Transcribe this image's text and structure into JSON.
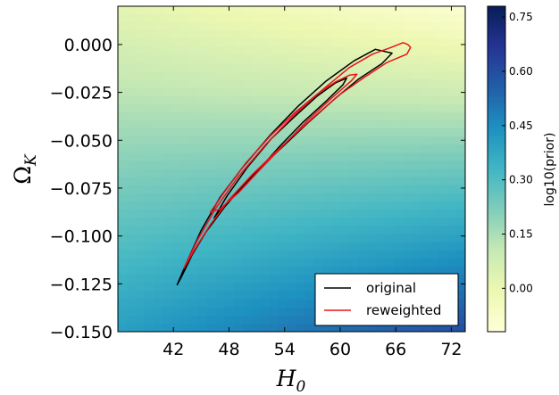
{
  "chart_data": {
    "type": "heatmap",
    "title": "",
    "xlabel_base": "H",
    "xlabel_sub": "0",
    "ylabel_base": "Ω",
    "ylabel_sub": "K",
    "xlim": [
      36,
      73.5
    ],
    "ylim": [
      -0.15,
      0.02
    ],
    "xticks": [
      42,
      48,
      54,
      60,
      66,
      72
    ],
    "xtick_labels": [
      "42",
      "48",
      "54",
      "60",
      "66",
      "72"
    ],
    "yticks": [
      0.0,
      -0.025,
      -0.05,
      -0.075,
      -0.1,
      -0.125,
      -0.15
    ],
    "ytick_labels": [
      "0.000",
      "−0.025",
      "−0.050",
      "−0.075",
      "−0.100",
      "−0.125",
      "−0.150"
    ],
    "colorbar": {
      "label": "log10(prior)",
      "range": [
        -0.12,
        0.78
      ],
      "ticks": [
        0.0,
        0.15,
        0.3,
        0.45,
        0.6,
        0.75
      ],
      "tick_labels": [
        "0.00",
        "0.15",
        "0.30",
        "0.45",
        "0.60",
        "0.75"
      ],
      "colormap": [
        "#ffffd9",
        "#edf8b1",
        "#c7e9b4",
        "#7fcdbb",
        "#41b6c4",
        "#1d91c0",
        "#225ea8",
        "#253494",
        "#081d58"
      ]
    },
    "heatmap": {
      "value_at_top_left": 0.02,
      "value_at_top_right": -0.1,
      "value_at_bottom_left": 0.4,
      "value_at_bottom_right": 0.6
    },
    "legend": {
      "placement": "lower-right",
      "entries": [
        {
          "label": "original",
          "color": "#000000"
        },
        {
          "label": "reweighted",
          "color": "#e8141c"
        }
      ]
    },
    "series": [
      {
        "name": "original",
        "color": "#000000",
        "contours": [
          {
            "level": "outer",
            "points": [
              [
                42.4,
                -0.1255
              ],
              [
                43.5,
                -0.113
              ],
              [
                45,
                -0.097
              ],
              [
                47,
                -0.08
              ],
              [
                49.5,
                -0.064
              ],
              [
                52.5,
                -0.047
              ],
              [
                55.5,
                -0.032
              ],
              [
                58.5,
                -0.019
              ],
              [
                61.5,
                -0.0085
              ],
              [
                63.8,
                -0.0025
              ],
              [
                65.6,
                -0.0045
              ],
              [
                64.5,
                -0.01
              ],
              [
                62,
                -0.018
              ],
              [
                59.5,
                -0.028
              ],
              [
                56.5,
                -0.041
              ],
              [
                53,
                -0.057
              ],
              [
                50,
                -0.071
              ],
              [
                47.5,
                -0.085
              ],
              [
                45.5,
                -0.098
              ],
              [
                44,
                -0.11
              ],
              [
                42.9,
                -0.121
              ],
              [
                42.4,
                -0.1255
              ]
            ]
          },
          {
            "level": "inner",
            "points": [
              [
                46.4,
                -0.0905
              ],
              [
                47.8,
                -0.079
              ],
              [
                50,
                -0.064
              ],
              [
                52.5,
                -0.0495
              ],
              [
                55,
                -0.038
              ],
              [
                57.5,
                -0.027
              ],
              [
                59.5,
                -0.02
              ],
              [
                60.7,
                -0.0175
              ],
              [
                60.3,
                -0.021
              ],
              [
                58.5,
                -0.0295
              ],
              [
                56,
                -0.0405
              ],
              [
                53.5,
                -0.053
              ],
              [
                51,
                -0.0665
              ],
              [
                48.5,
                -0.079
              ],
              [
                47,
                -0.087
              ],
              [
                46.4,
                -0.0905
              ]
            ]
          }
        ]
      },
      {
        "name": "reweighted",
        "color": "#e8141c",
        "contours": [
          {
            "level": "outer",
            "points": [
              [
                43.1,
                -0.117
              ],
              [
                44.6,
                -0.102
              ],
              [
                46.5,
                -0.086
              ],
              [
                49,
                -0.069
              ],
              [
                52,
                -0.052
              ],
              [
                55,
                -0.037
              ],
              [
                58,
                -0.024
              ],
              [
                61,
                -0.012
              ],
              [
                63.5,
                -0.005
              ],
              [
                65.5,
                -0.0015
              ],
              [
                66.8,
                0.001
              ],
              [
                67.3,
                0.0
              ],
              [
                67.6,
                -0.0015
              ],
              [
                67.2,
                -0.005
              ],
              [
                65,
                -0.0095
              ],
              [
                62.5,
                -0.0175
              ],
              [
                60,
                -0.026
              ],
              [
                57,
                -0.0385
              ],
              [
                53.5,
                -0.054
              ],
              [
                50.5,
                -0.068
              ],
              [
                48,
                -0.081
              ],
              [
                46,
                -0.094
              ],
              [
                44.3,
                -0.107
              ],
              [
                43.1,
                -0.117
              ]
            ]
          },
          {
            "level": "inner",
            "points": [
              [
                46,
                -0.0875
              ],
              [
                47.5,
                -0.077
              ],
              [
                49.8,
                -0.062
              ],
              [
                52.5,
                -0.0475
              ],
              [
                55,
                -0.036
              ],
              [
                57.5,
                -0.026
              ],
              [
                59.5,
                -0.0195
              ],
              [
                61,
                -0.016
              ],
              [
                61.8,
                -0.0155
              ],
              [
                61.2,
                -0.019
              ],
              [
                59.2,
                -0.0275
              ],
              [
                56.5,
                -0.0395
              ],
              [
                54,
                -0.052
              ],
              [
                51.5,
                -0.0645
              ],
              [
                49,
                -0.0775
              ],
              [
                47,
                -0.086
              ],
              [
                46,
                -0.0875
              ]
            ]
          }
        ]
      }
    ]
  }
}
